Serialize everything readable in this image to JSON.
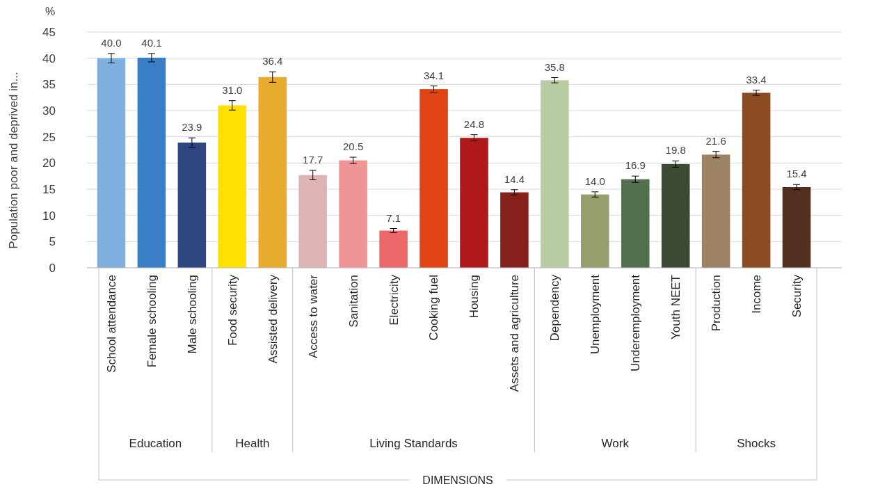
{
  "chart_data": {
    "type": "bar",
    "ylabel": "Population poor and deprived in...",
    "categories": [
      "School attendance",
      "Female schooling",
      "Male schooling",
      "Food security",
      "Assisted delivery",
      "Access to water",
      "Sanitation",
      "Electricity",
      "Cooking fuel",
      "Housing",
      "Assets and agriculture",
      "Dependency",
      "Unemployment",
      "Underemployment",
      "Youth NEET",
      "Production",
      "Income",
      "Security"
    ],
    "values": [
      40.0,
      40.1,
      23.9,
      31.0,
      36.4,
      17.7,
      20.5,
      7.1,
      34.1,
      24.8,
      14.4,
      35.8,
      14.0,
      16.9,
      19.8,
      21.6,
      33.4,
      15.4
    ],
    "value_labels": [
      "40.0",
      "40.1",
      "23.9",
      "31.0",
      "36.4",
      "17.7",
      "20.5",
      "7.1",
      "34.1",
      "24.8",
      "14.4",
      "35.8",
      "14.0",
      "16.9",
      "19.8",
      "21.6",
      "33.4",
      "15.4"
    ],
    "errors": [
      0.9,
      0.8,
      0.9,
      0.9,
      1.0,
      0.9,
      0.6,
      0.4,
      0.6,
      0.6,
      0.5,
      0.5,
      0.5,
      0.6,
      0.6,
      0.6,
      0.5,
      0.5
    ],
    "colors": [
      "#7fb0e0",
      "#3a7fc6",
      "#2e4582",
      "#ffe000",
      "#e8ac2c",
      "#dfb4b2",
      "#f09496",
      "#ec6767",
      "#e04314",
      "#b0191b",
      "#85211a",
      "#b9cda5",
      "#979d6d",
      "#536f4e",
      "#3d4a33",
      "#9e8264",
      "#8a4b22",
      "#532f22"
    ],
    "ylim": [
      0,
      45
    ],
    "yticks": [
      0,
      5,
      10,
      15,
      20,
      25,
      30,
      35,
      40,
      45
    ],
    "grid": "y",
    "annotations": [
      "%",
      "Education",
      "Health",
      "Living Standards",
      "Work",
      "Shocks",
      "DIMENSIONS"
    ]
  }
}
